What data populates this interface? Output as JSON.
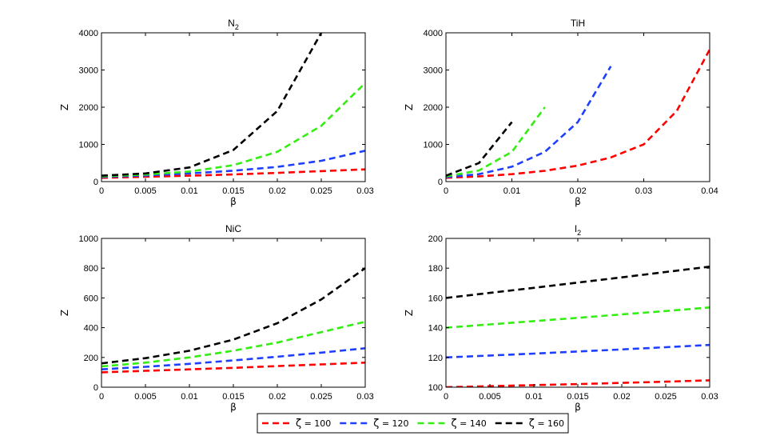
{
  "chart_data": [
    {
      "type": "line",
      "title": "N",
      "title_sub": "2",
      "xlabel": "β",
      "ylabel": "Z",
      "xlim": [
        0,
        0.03
      ],
      "ylim": [
        0,
        4000
      ],
      "xticks": [
        0,
        0.005,
        0.01,
        0.015,
        0.02,
        0.025,
        0.03
      ],
      "xtick_labels": [
        "0",
        "0.005",
        "0.01",
        "0.015",
        "0.02",
        "0.025",
        "0.03"
      ],
      "yticks": [
        0,
        1000,
        2000,
        3000,
        4000
      ],
      "ytick_labels": [
        "0",
        "1000",
        "2000",
        "3000",
        "4000"
      ],
      "x": [
        0,
        0.005,
        0.01,
        0.015,
        0.02,
        0.025,
        0.03
      ],
      "series": [
        {
          "name": "ζ = 100",
          "color": "#ff0000",
          "values": [
            100,
            128,
            159,
            194,
            235,
            282,
            330
          ]
        },
        {
          "name": "ζ = 120",
          "color": "#1f3fff",
          "values": [
            125,
            165,
            220,
            292,
            395,
            560,
            830
          ]
        },
        {
          "name": "ζ = 140",
          "color": "#33ee11",
          "values": [
            140,
            190,
            270,
            440,
            800,
            1500,
            2650
          ]
        },
        {
          "name": "ζ = 160",
          "color": "#000000",
          "values": [
            160,
            220,
            380,
            850,
            1900,
            4000,
            null
          ]
        }
      ]
    },
    {
      "type": "line",
      "title": "TiH",
      "title_sub": "",
      "xlabel": "β",
      "ylabel": "Z",
      "xlim": [
        0,
        0.04
      ],
      "ylim": [
        0,
        4000
      ],
      "xticks": [
        0,
        0.01,
        0.02,
        0.03,
        0.04
      ],
      "xtick_labels": [
        "0",
        "0.01",
        "0.02",
        "0.03",
        "0.04"
      ],
      "yticks": [
        0,
        1000,
        2000,
        3000,
        4000
      ],
      "ytick_labels": [
        "0",
        "1000",
        "2000",
        "3000",
        "4000"
      ],
      "x": [
        0,
        0.005,
        0.01,
        0.015,
        0.02,
        0.025,
        0.03,
        0.035,
        0.04
      ],
      "series": [
        {
          "name": "ζ = 100",
          "color": "#ff0000",
          "values": [
            100,
            140,
            200,
            290,
            430,
            650,
            1000,
            1900,
            3550
          ]
        },
        {
          "name": "ζ = 120",
          "color": "#1f3fff",
          "values": [
            120,
            200,
            400,
            800,
            1600,
            3100,
            null,
            null,
            null
          ]
        },
        {
          "name": "ζ = 140",
          "color": "#33ee11",
          "values": [
            140,
            300,
            800,
            2000,
            null,
            null,
            null,
            null,
            null
          ]
        },
        {
          "name": "ζ = 160",
          "color": "#000000",
          "values": [
            160,
            500,
            1600,
            null,
            null,
            null,
            null,
            null,
            null
          ]
        }
      ]
    },
    {
      "type": "line",
      "title": "NiC",
      "title_sub": "",
      "xlabel": "β",
      "ylabel": "Z",
      "xlim": [
        0,
        0.03
      ],
      "ylim": [
        0,
        1000
      ],
      "xticks": [
        0,
        0.005,
        0.01,
        0.015,
        0.02,
        0.025,
        0.03
      ],
      "xtick_labels": [
        "0",
        "0.005",
        "0.01",
        "0.015",
        "0.02",
        "0.025",
        "0.03"
      ],
      "yticks": [
        0,
        200,
        400,
        600,
        800,
        1000
      ],
      "ytick_labels": [
        "0",
        "200",
        "400",
        "600",
        "800",
        "1000"
      ],
      "x": [
        0,
        0.005,
        0.01,
        0.015,
        0.02,
        0.025,
        0.03
      ],
      "series": [
        {
          "name": "ζ = 100",
          "color": "#ff0000",
          "values": [
            100,
            110,
            120,
            130,
            142,
            153,
            165
          ]
        },
        {
          "name": "ζ = 120",
          "color": "#1f3fff",
          "values": [
            120,
            137,
            157,
            180,
            205,
            232,
            262
          ]
        },
        {
          "name": "ζ = 140",
          "color": "#33ee11",
          "values": [
            140,
            165,
            200,
            245,
            300,
            370,
            440
          ]
        },
        {
          "name": "ζ = 160",
          "color": "#000000",
          "values": [
            160,
            195,
            245,
            320,
            430,
            590,
            800
          ]
        }
      ]
    },
    {
      "type": "line",
      "title": "I",
      "title_sub": "2",
      "xlabel": "β",
      "ylabel": "Z",
      "xlim": [
        0,
        0.03
      ],
      "ylim": [
        100,
        200
      ],
      "xticks": [
        0,
        0.005,
        0.01,
        0.015,
        0.02,
        0.025,
        0.03
      ],
      "xtick_labels": [
        "0",
        "0.005",
        "0.01",
        "0.015",
        "0.02",
        "0.025",
        "0.03"
      ],
      "yticks": [
        100,
        120,
        140,
        160,
        180,
        200
      ],
      "ytick_labels": [
        "100",
        "120",
        "140",
        "160",
        "180",
        "200"
      ],
      "x": [
        0,
        0.005,
        0.01,
        0.015,
        0.02,
        0.025,
        0.03
      ],
      "series": [
        {
          "name": "ζ = 100",
          "color": "#ff0000",
          "values": [
            100,
            100.7,
            101.4,
            102.1,
            102.9,
            103.7,
            104.6
          ]
        },
        {
          "name": "ζ = 120",
          "color": "#1f3fff",
          "values": [
            120,
            121.3,
            122.6,
            124.0,
            125.4,
            126.9,
            128.4
          ]
        },
        {
          "name": "ζ = 140",
          "color": "#33ee11",
          "values": [
            140,
            142.2,
            144.4,
            146.6,
            148.9,
            151.2,
            153.6
          ]
        },
        {
          "name": "ζ = 160",
          "color": "#000000",
          "values": [
            160,
            163.4,
            166.8,
            170.3,
            173.8,
            177.4,
            181
          ]
        }
      ]
    }
  ],
  "legend": [
    {
      "symbol": "ζ",
      "text": " = 100",
      "color": "#ff0000"
    },
    {
      "symbol": "ζ",
      "text": " = 120",
      "color": "#1f3fff"
    },
    {
      "symbol": "ζ",
      "text": " = 140",
      "color": "#33ee11"
    },
    {
      "symbol": "ζ",
      "text": " = 160",
      "color": "#000000"
    }
  ]
}
